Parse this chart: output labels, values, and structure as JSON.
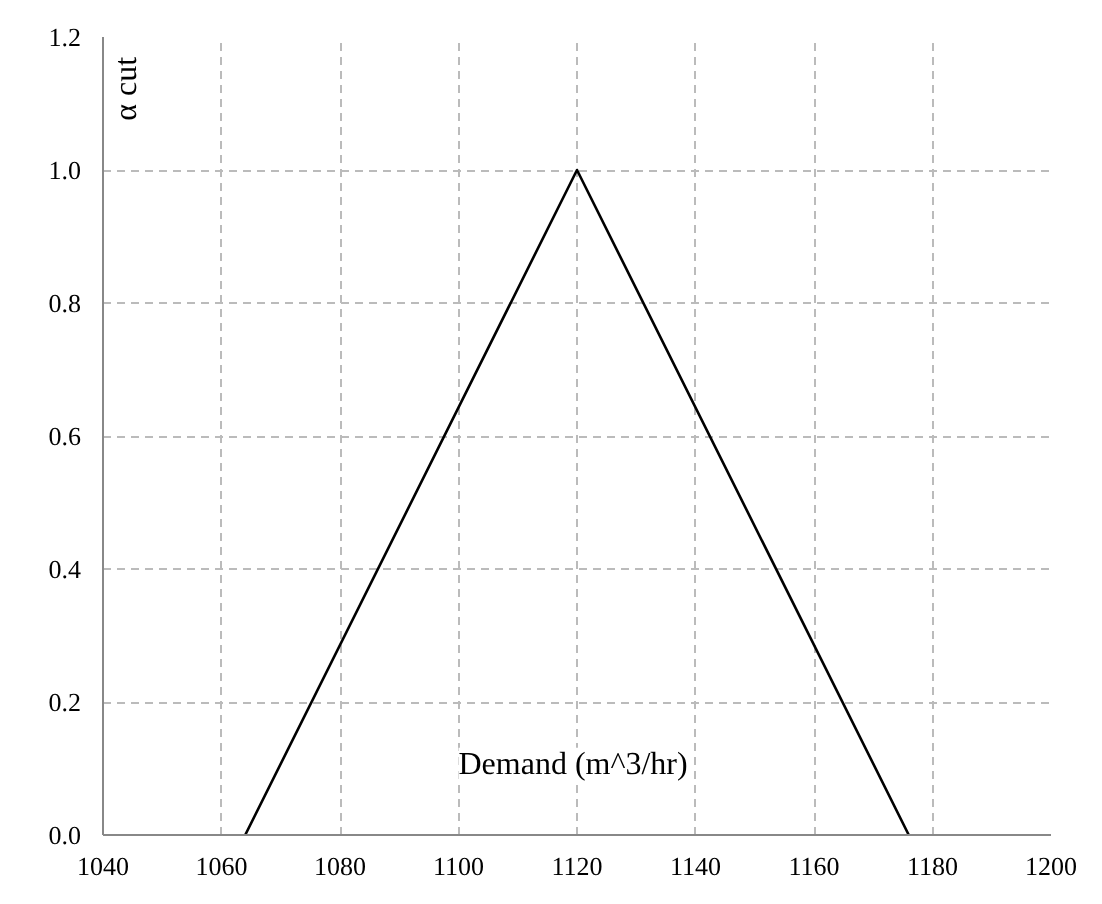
{
  "chart_data": {
    "type": "line",
    "xlabel": "Demand (m^3/hr)",
    "ylabel": "α cut",
    "x": [
      1064,
      1120,
      1176
    ],
    "series": [
      {
        "color": "#000000",
        "values": [
          0,
          1,
          0
        ]
      }
    ],
    "xlim": [
      1040,
      1200
    ],
    "xticks": [
      1040,
      1060,
      1080,
      1100,
      1120,
      1140,
      1160,
      1180,
      1200
    ],
    "ylim": [
      0,
      1.2
    ],
    "yticks": [
      {
        "value": 0,
        "label": "0.0"
      },
      {
        "value": 0.2,
        "label": "0.2"
      },
      {
        "value": 0.4,
        "label": "0.4"
      },
      {
        "value": 0.6,
        "label": "0.6"
      },
      {
        "value": 0.8,
        "label": "0.8"
      },
      {
        "value": 1,
        "label": "1.0"
      },
      {
        "value": 1.2,
        "label": "1.2"
      }
    ],
    "grid": true,
    "marker": "none",
    "line_style": "solid"
  }
}
